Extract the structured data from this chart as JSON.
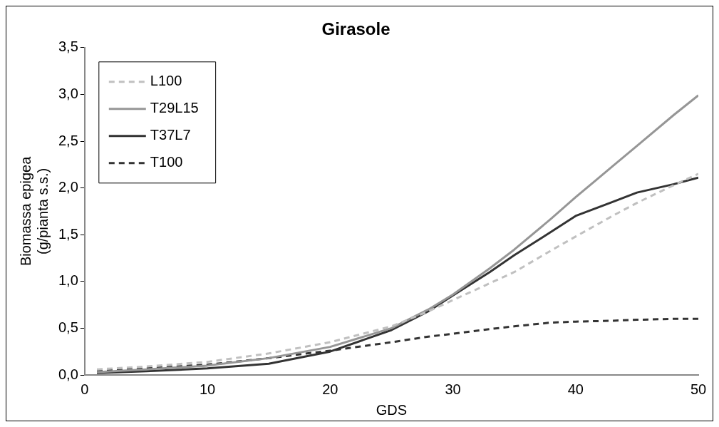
{
  "chart_data": {
    "type": "line",
    "title": "Girasole",
    "xlabel": "GDS",
    "ylabel": "Biomassa epigea\n(g/pianta s.s.)",
    "x": [
      1,
      5,
      10,
      15,
      20,
      25,
      28,
      30,
      33,
      35,
      38,
      40,
      43,
      45,
      48,
      50
    ],
    "series": [
      {
        "name": "L100",
        "color": "#c0c0c0",
        "line_style": "dashed",
        "values": [
          0.06,
          0.09,
          0.14,
          0.23,
          0.35,
          0.52,
          0.68,
          0.8,
          0.98,
          1.1,
          1.33,
          1.48,
          1.7,
          1.84,
          2.03,
          2.15
        ]
      },
      {
        "name": "T29L15",
        "color": "#969696",
        "line_style": "solid",
        "values": [
          0.03,
          0.06,
          0.1,
          0.18,
          0.3,
          0.5,
          0.7,
          0.86,
          1.14,
          1.34,
          1.67,
          1.9,
          2.23,
          2.45,
          2.78,
          2.99
        ]
      },
      {
        "name": "T37L7",
        "color": "#333333",
        "line_style": "solid",
        "values": [
          0.02,
          0.04,
          0.07,
          0.12,
          0.25,
          0.48,
          0.68,
          0.85,
          1.1,
          1.28,
          1.53,
          1.7,
          1.85,
          1.95,
          2.04,
          2.11
        ]
      },
      {
        "name": "T100",
        "color": "#333333",
        "line_style": "dashed",
        "values": [
          0.04,
          0.07,
          0.11,
          0.18,
          0.26,
          0.35,
          0.41,
          0.44,
          0.49,
          0.52,
          0.56,
          0.57,
          0.58,
          0.59,
          0.6,
          0.6
        ]
      }
    ],
    "xlim": [
      0,
      50
    ],
    "xticks": [
      0,
      10,
      20,
      30,
      40,
      50
    ],
    "ylim": [
      0,
      3.5
    ],
    "yticks": [
      {
        "value": 0,
        "label": "0,0"
      },
      {
        "value": 0.5,
        "label": "0,5"
      },
      {
        "value": 1,
        "label": "1,0"
      },
      {
        "value": 1.5,
        "label": "1,5"
      },
      {
        "value": 2,
        "label": "2,0"
      },
      {
        "value": 2.5,
        "label": "2,5"
      },
      {
        "value": 3,
        "label": "3,0"
      },
      {
        "value": 3.5,
        "label": "3,5"
      }
    ],
    "grid": false,
    "legend": "top left",
    "marker": "none"
  }
}
